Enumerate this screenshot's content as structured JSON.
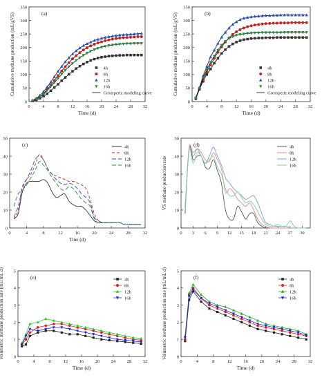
{
  "chart_data": [
    {
      "id": "a",
      "type": "scatter",
      "panel_label": "(a)",
      "xlabel": "Time (d)",
      "ylabel": "Cumulative methane production (mL/gVS)",
      "xlim": [
        0,
        32
      ],
      "ylim": [
        0,
        350
      ],
      "xticks": [
        0,
        4,
        8,
        12,
        16,
        20,
        24,
        28,
        32
      ],
      "yticks": [
        0,
        50,
        100,
        150,
        200,
        250,
        300,
        350
      ],
      "grid": false,
      "legend_position": "bottom-right",
      "x": [
        1,
        2,
        3,
        4,
        5,
        6,
        7,
        8,
        9,
        10,
        11,
        12,
        13,
        14,
        15,
        16,
        17,
        18,
        19,
        20,
        21,
        22,
        23,
        24,
        25,
        26,
        27,
        28,
        29,
        30,
        31
      ],
      "series": [
        {
          "name": "4h",
          "marker": "square",
          "color": "#333333",
          "values": [
            2,
            6,
            12,
            20,
            29,
            40,
            52,
            64,
            77,
            89,
            101,
            112,
            122,
            131,
            139,
            146,
            152,
            157,
            161,
            164,
            166,
            168,
            169,
            170,
            171,
            171,
            172,
            172,
            172,
            172,
            172
          ]
        },
        {
          "name": "8h",
          "marker": "circle",
          "color": "#cc1f1f",
          "values": [
            3,
            9,
            18,
            30,
            45,
            61,
            78,
            96,
            113,
            129,
            144,
            158,
            170,
            181,
            191,
            199,
            206,
            212,
            217,
            221,
            225,
            228,
            231,
            233,
            235,
            236,
            237,
            238,
            239,
            240,
            240
          ]
        },
        {
          "name": "12h",
          "marker": "triangle-up",
          "color": "#1f4fd0",
          "values": [
            4,
            12,
            23,
            37,
            54,
            72,
            92,
            112,
            130,
            147,
            162,
            176,
            188,
            198,
            207,
            214,
            220,
            226,
            230,
            234,
            237,
            240,
            242,
            244,
            246,
            247,
            248,
            249,
            250,
            251,
            252
          ]
        },
        {
          "name": "16h",
          "marker": "triangle-down",
          "color": "#1f8f3a",
          "values": [
            3,
            9,
            17,
            28,
            41,
            55,
            70,
            86,
            101,
            116,
            129,
            141,
            152,
            162,
            171,
            179,
            186,
            192,
            197,
            201,
            204,
            207,
            209,
            211,
            212,
            213,
            214,
            214,
            215,
            215,
            215
          ]
        }
      ],
      "curve_label": "Grompertz modeling curve"
    },
    {
      "id": "b",
      "type": "scatter",
      "panel_label": "(b)",
      "xlabel": "Time (d)",
      "ylabel": "Cumulative methane production (mL/gVS)",
      "xlim": [
        0,
        32
      ],
      "ylim": [
        0,
        350
      ],
      "xticks": [
        0,
        4,
        8,
        12,
        16,
        20,
        24,
        28,
        32
      ],
      "yticks": [
        0,
        50,
        100,
        150,
        200,
        250,
        300,
        350
      ],
      "grid": false,
      "legend_position": "bottom-right",
      "x": [
        1,
        2,
        3,
        4,
        5,
        6,
        7,
        8,
        9,
        10,
        11,
        12,
        13,
        14,
        15,
        16,
        17,
        18,
        19,
        20,
        21,
        22,
        23,
        24,
        25,
        26,
        27,
        28,
        29,
        30,
        31
      ],
      "series": [
        {
          "name": "4h",
          "marker": "square",
          "color": "#333333",
          "values": [
            10,
            45,
            75,
            100,
            120,
            142,
            160,
            178,
            192,
            204,
            213,
            220,
            225,
            229,
            231,
            233,
            234,
            235,
            235,
            236,
            236,
            236,
            237,
            237,
            237,
            237,
            237,
            237,
            237,
            237,
            237
          ]
        },
        {
          "name": "8h",
          "marker": "circle",
          "color": "#cc1f1f",
          "values": [
            12,
            48,
            82,
            110,
            135,
            160,
            182,
            202,
            220,
            235,
            248,
            258,
            266,
            272,
            277,
            280,
            283,
            285,
            287,
            288,
            289,
            290,
            290,
            291,
            291,
            291,
            292,
            292,
            292,
            292,
            292
          ]
        },
        {
          "name": "12h",
          "marker": "triangle-up",
          "color": "#1f4fd0",
          "values": [
            15,
            52,
            95,
            130,
            165,
            190,
            215,
            238,
            256,
            272,
            285,
            295,
            303,
            308,
            311,
            313,
            315,
            316,
            317,
            318,
            318,
            319,
            319,
            320,
            320,
            320,
            320,
            320,
            320,
            320,
            320
          ]
        },
        {
          "name": "16h",
          "marker": "triangle-down",
          "color": "#1f8f3a",
          "values": [
            12,
            50,
            88,
            118,
            145,
            168,
            190,
            208,
            222,
            233,
            240,
            245,
            248,
            250,
            252,
            253,
            254,
            254,
            255,
            255,
            255,
            255,
            255,
            255,
            256,
            256,
            256,
            256,
            256,
            256,
            256
          ]
        }
      ],
      "curve_label": "Grompertz modeling curve"
    },
    {
      "id": "c",
      "type": "line",
      "panel_label": "(c)",
      "xlabel": "Tine (d)",
      "ylabel": "VS methane production rate (mL/gVS.d)",
      "xlim": [
        0,
        32
      ],
      "ylim": [
        0,
        50
      ],
      "xticks": [
        0,
        4,
        8,
        12,
        16,
        20,
        24,
        28,
        32
      ],
      "yticks": [
        0,
        10,
        20,
        30,
        40,
        50
      ],
      "grid": false,
      "legend_position": "top-right",
      "x": [
        1,
        2,
        3,
        4,
        5,
        6,
        7,
        8,
        9,
        10,
        11,
        12,
        13,
        14,
        15,
        16,
        17,
        18,
        19,
        20,
        21,
        22,
        23,
        24,
        25,
        26,
        27,
        28,
        29,
        30,
        31
      ],
      "series": [
        {
          "name": "4h",
          "dash": "",
          "color": "#333333",
          "values": [
            5,
            8,
            20,
            25,
            26,
            26,
            26,
            27,
            25,
            20,
            17,
            18,
            19,
            15,
            13,
            12,
            12,
            10,
            7,
            4,
            3,
            3,
            3,
            3,
            3,
            3,
            2,
            2,
            2,
            2,
            2
          ]
        },
        {
          "name": "8h",
          "dash": "4,3",
          "color": "#cc1f1f",
          "values": [
            5,
            10,
            23,
            27,
            30,
            35,
            41,
            38,
            33,
            30,
            29,
            28,
            27,
            26,
            26,
            25,
            24,
            22,
            16,
            8,
            4,
            3,
            3,
            3,
            3,
            3,
            2,
            2,
            2,
            2,
            2
          ]
        },
        {
          "name": "12h",
          "dash": "6,3",
          "color": "#1f4fd0",
          "values": [
            6,
            12,
            22,
            27,
            32,
            38,
            40,
            38,
            33,
            30,
            27,
            25,
            24,
            25,
            24,
            22,
            19,
            17,
            14,
            6,
            4,
            3,
            3,
            3,
            3,
            3,
            2,
            2,
            2,
            2,
            2
          ]
        },
        {
          "name": "16h",
          "dash": "6,3",
          "color": "#1f8f3a",
          "values": [
            12,
            19,
            21,
            24,
            28,
            32,
            37,
            35,
            32,
            28,
            25,
            22,
            21,
            23,
            22,
            19,
            16,
            14,
            12,
            5,
            3,
            3,
            3,
            3,
            3,
            3,
            2,
            2,
            2,
            2,
            2
          ]
        }
      ]
    },
    {
      "id": "d",
      "type": "line",
      "panel_label": "(d)",
      "xlabel": "",
      "ylabel": "VS methane production rate",
      "xlim": [
        0,
        32
      ],
      "ylim": [
        0,
        50
      ],
      "xticks": [
        0,
        3,
        6,
        9,
        12,
        15,
        18,
        21,
        24,
        27,
        30,
        33
      ],
      "yticks": [
        0,
        10,
        20,
        30,
        40,
        50
      ],
      "grid": false,
      "legend_position": "top-right",
      "x": [
        1,
        2,
        3,
        4,
        5,
        6,
        7,
        8,
        9,
        10,
        11,
        12,
        13,
        14,
        15,
        16,
        17,
        18,
        19,
        20,
        21,
        22,
        23,
        24,
        25,
        26,
        27,
        28,
        29,
        30,
        31
      ],
      "series": [
        {
          "name": "4h",
          "dash": "",
          "color": "#555555",
          "values": [
            8,
            44,
            38,
            40,
            40,
            34,
            33,
            38,
            32,
            25,
            10,
            5,
            5,
            12,
            9,
            5,
            8,
            8,
            3,
            1,
            0,
            0,
            0,
            0,
            0,
            0,
            0,
            0,
            0,
            0,
            0
          ]
        },
        {
          "name": "8h",
          "dash": "",
          "color": "#e08a8a",
          "values": [
            10,
            45,
            40,
            44,
            42,
            38,
            37,
            42,
            38,
            33,
            20,
            22,
            20,
            16,
            14,
            12,
            14,
            10,
            5,
            2,
            1,
            0,
            0,
            0,
            0,
            0,
            0,
            0,
            0,
            0,
            0
          ]
        },
        {
          "name": "12h",
          "dash": "",
          "color": "#7f9fe0",
          "values": [
            12,
            44,
            42,
            44,
            40,
            36,
            40,
            45,
            40,
            35,
            28,
            25,
            22,
            20,
            18,
            16,
            17,
            18,
            14,
            8,
            3,
            2,
            1,
            1,
            1,
            1,
            0,
            0,
            0,
            0,
            0
          ]
        },
        {
          "name": "16h",
          "dash": "",
          "color": "#7fd09a",
          "values": [
            10,
            43,
            36,
            42,
            40,
            36,
            38,
            40,
            34,
            30,
            22,
            18,
            18,
            20,
            17,
            14,
            15,
            13,
            9,
            5,
            2,
            1,
            1,
            2,
            1,
            1,
            4,
            1,
            0,
            0,
            0
          ]
        }
      ]
    },
    {
      "id": "e",
      "type": "line",
      "panel_label": "(e)",
      "xlabel": "Time (d)",
      "ylabel": "Volumetric methane production rate (mL/mL.d)",
      "xlim": [
        0,
        32
      ],
      "ylim": [
        0,
        5
      ],
      "xticks": [
        0,
        4,
        8,
        12,
        16,
        20,
        24,
        28,
        32
      ],
      "yticks": [
        0,
        1,
        2,
        3,
        4,
        5
      ],
      "grid": false,
      "legend_position": "top-right",
      "x": [
        1,
        2,
        3,
        5,
        7,
        9,
        11,
        13,
        15,
        17,
        19,
        21,
        23,
        25,
        27,
        29,
        31
      ],
      "series": [
        {
          "name": "4h",
          "marker": "square",
          "color": "#222222",
          "values": [
            0.6,
            0.7,
            1.2,
            1.4,
            1.5,
            1.5,
            1.4,
            1.3,
            1.3,
            1.2,
            1.1,
            1.0,
            0.95,
            0.9,
            0.85,
            0.8,
            0.75
          ]
        },
        {
          "name": "8h",
          "marker": "circle",
          "color": "#e02020",
          "values": [
            0.7,
            1.0,
            1.4,
            1.7,
            1.8,
            1.9,
            1.9,
            1.8,
            1.7,
            1.6,
            1.5,
            1.4,
            1.3,
            1.2,
            1.1,
            1.0,
            0.95
          ]
        },
        {
          "name": "12h",
          "marker": "triangle-up",
          "color": "#20cc20",
          "values": [
            0.8,
            1.3,
            1.9,
            2.0,
            2.2,
            2.1,
            2.0,
            1.9,
            1.8,
            1.7,
            1.6,
            1.5,
            1.4,
            1.3,
            1.2,
            1.1,
            1.05
          ]
        },
        {
          "name": "16h",
          "marker": "triangle-down",
          "color": "#2020e0",
          "values": [
            0.7,
            1.2,
            1.6,
            1.5,
            1.6,
            1.7,
            1.7,
            1.6,
            1.5,
            1.4,
            1.3,
            1.2,
            1.1,
            1.0,
            0.95,
            0.9,
            0.85
          ]
        }
      ]
    },
    {
      "id": "f",
      "type": "line",
      "panel_label": "(f)",
      "xlabel": "Time (d)",
      "ylabel": "Volumetric methane production rate (mL/mL.d)",
      "xlim": [
        0,
        32
      ],
      "ylim": [
        0,
        5
      ],
      "xticks": [
        0,
        4,
        8,
        12,
        16,
        20,
        24,
        28,
        32
      ],
      "yticks": [
        0,
        1,
        2,
        3,
        4,
        5
      ],
      "grid": false,
      "legend_position": "top-right",
      "x": [
        1,
        2,
        3,
        5,
        7,
        9,
        11,
        13,
        15,
        17,
        19,
        21,
        23,
        25,
        27,
        29,
        31
      ],
      "series": [
        {
          "name": "4h",
          "marker": "square",
          "color": "#222222",
          "values": [
            0.9,
            3.3,
            3.8,
            3.2,
            2.8,
            2.6,
            2.4,
            2.2,
            2.0,
            1.8,
            1.6,
            1.5,
            1.4,
            1.3,
            1.2,
            1.1,
            1.0
          ]
        },
        {
          "name": "8h",
          "marker": "circle",
          "color": "#e02020",
          "values": [
            1.0,
            3.6,
            4.0,
            3.4,
            3.0,
            2.8,
            2.6,
            2.4,
            2.2,
            2.0,
            1.8,
            1.7,
            1.6,
            1.5,
            1.4,
            1.3,
            1.2
          ]
        },
        {
          "name": "12h",
          "marker": "triangle-up",
          "color": "#20aa20",
          "values": [
            1.2,
            3.7,
            4.2,
            3.6,
            3.2,
            3.0,
            2.9,
            2.7,
            2.5,
            2.3,
            2.1,
            1.9,
            1.8,
            1.7,
            1.6,
            1.5,
            1.3
          ]
        },
        {
          "name": "16h",
          "marker": "triangle-down",
          "color": "#2020e0",
          "values": [
            1.1,
            3.5,
            3.9,
            3.4,
            3.1,
            2.9,
            2.7,
            2.5,
            2.3,
            2.1,
            1.9,
            1.8,
            1.7,
            1.6,
            1.5,
            1.4,
            1.25
          ]
        }
      ]
    }
  ]
}
